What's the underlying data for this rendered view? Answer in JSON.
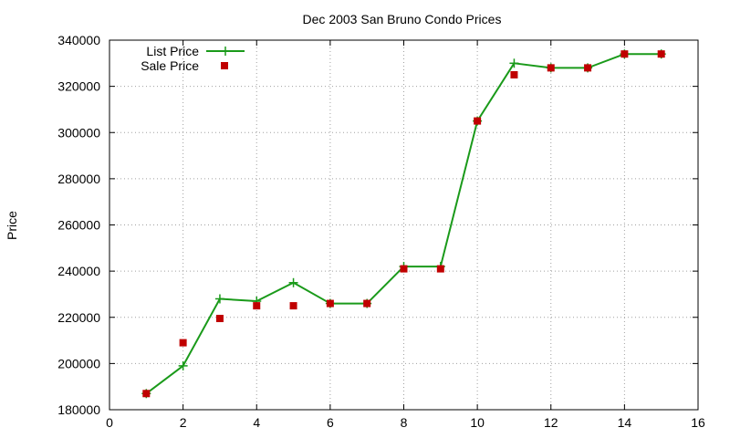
{
  "chart_data": {
    "type": "line",
    "title": "Dec 2003 San Bruno Condo Prices",
    "xlabel": "",
    "ylabel": "Price",
    "xlim": [
      0,
      16
    ],
    "ylim": [
      180000,
      340000
    ],
    "x_ticks": [
      0,
      2,
      4,
      6,
      8,
      10,
      12,
      14,
      16
    ],
    "y_ticks": [
      180000,
      200000,
      220000,
      240000,
      260000,
      280000,
      300000,
      320000,
      340000
    ],
    "grid": true,
    "legend_position": "top-left",
    "series": [
      {
        "name": "List Price",
        "style": "lines+points",
        "marker": "plus",
        "color": "#1a9a1a",
        "x": [
          1,
          2,
          3,
          4,
          5,
          6,
          7,
          8,
          9,
          10,
          11,
          12,
          13,
          14,
          15
        ],
        "values": [
          187000,
          199000,
          228000,
          227000,
          235000,
          226000,
          226000,
          242000,
          242000,
          305000,
          330000,
          328000,
          328000,
          334000,
          334000
        ]
      },
      {
        "name": "Sale Price",
        "style": "points",
        "marker": "square",
        "color": "#c00000",
        "x": [
          1,
          2,
          3,
          4,
          5,
          6,
          7,
          8,
          9,
          10,
          11,
          12,
          13,
          14,
          15
        ],
        "values": [
          187000,
          209000,
          219500,
          225000,
          225000,
          226000,
          226000,
          241000,
          241000,
          305000,
          325000,
          328000,
          328000,
          334000,
          334000
        ]
      }
    ]
  }
}
